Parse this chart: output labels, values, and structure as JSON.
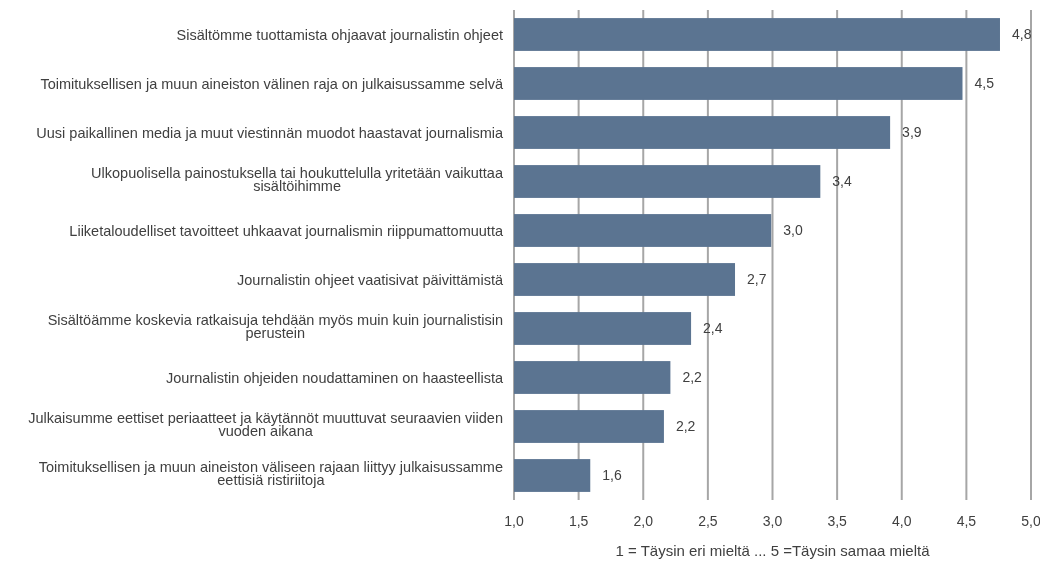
{
  "chart_data": {
    "type": "bar",
    "orientation": "horizontal",
    "categories": [
      "Sisältömme tuottamista ohjaavat journalistin ohjeet",
      "Toimituksellisen ja muun aineiston välinen raja on julkaisussamme selvä",
      "Uusi paikallinen media ja muut viestinnän muodot haastavat journalismia",
      "Ulkopuolisella painostuksella tai houkuttelulla yritetään vaikuttaa sisältöihimme",
      "Liiketaloudelliset tavoitteet uhkaavat journalismin riippumattomuutta",
      "Journalistin ohjeet vaatisivat päivittämistä",
      "Sisältöämme koskevia ratkaisuja tehdään myös muin kuin journalistisin perustein",
      "Journalistin ohjeiden noudattaminen on haasteellista",
      "Julkaisumme eettiset periaatteet ja käytännöt muuttuvat seuraavien viiden vuoden aikana",
      "Toimituksellisen ja muun aineiston väliseen rajaan liittyy julkaisussamme eettisiä ristiriitoja"
    ],
    "values": [
      4.76,
      4.47,
      3.91,
      3.37,
      2.99,
      2.71,
      2.37,
      2.21,
      2.16,
      1.59
    ],
    "value_labels": [
      "4,8",
      "4,5",
      "3,9",
      "3,4",
      "3,0",
      "2,7",
      "2,4",
      "2,2",
      "2,2",
      "1,6"
    ],
    "color": "#5b7491",
    "xlim": [
      1,
      5
    ],
    "xticks": [
      {
        "value": 1,
        "label": "1,0"
      },
      {
        "value": 1.5,
        "label": "1,5"
      },
      {
        "value": 2,
        "label": "2,0"
      },
      {
        "value": 2.5,
        "label": "2,5"
      },
      {
        "value": 3,
        "label": "3,0"
      },
      {
        "value": 3.5,
        "label": "3,5"
      },
      {
        "value": 4,
        "label": "4,0"
      },
      {
        "value": 4.5,
        "label": "4,5"
      },
      {
        "value": 5,
        "label": "5,0"
      }
    ],
    "xlabel": "1 = Täysin eri mieltä ... 5 =Täysin samaa mieltä",
    "grid": "x"
  }
}
